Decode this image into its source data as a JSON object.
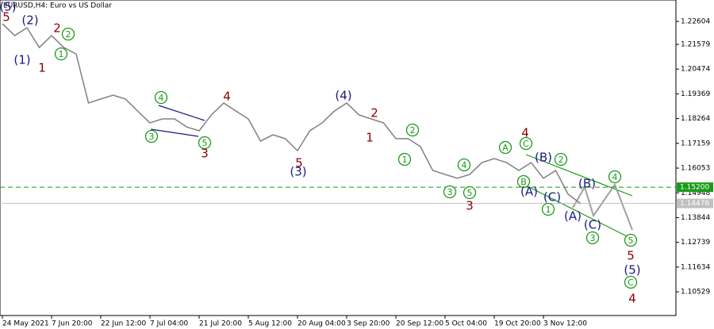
{
  "chart_data": {
    "type": "line",
    "title": "EURUSD,H4:  Euro vs US Dollar",
    "categories": [
      "24 May 2021",
      null,
      null,
      null,
      "7 Jun 20:00",
      null,
      null,
      null,
      "22 Jun 12:00",
      null,
      null,
      null,
      "7 Jul 04:00",
      null,
      null,
      null,
      "21 Jul 20:00",
      null,
      null,
      null,
      "5 Aug 12:00",
      null,
      null,
      null,
      "20 Aug 04:00",
      null,
      null,
      null,
      "3 Sep 20:00",
      null,
      null,
      null,
      "20 Sep 12:00",
      null,
      null,
      null,
      "5 Oct 04:00",
      null,
      null,
      null,
      "19 Oct 20:00",
      null,
      null,
      null,
      "3 Nov 12:00",
      null,
      null,
      null
    ],
    "series": [
      {
        "name": "EURUSD",
        "color": "#808080",
        "values": [
          1.225,
          1.2197,
          1.2232,
          1.2144,
          1.2197,
          1.2144,
          1.2115,
          1.1896,
          1.1914,
          1.1931,
          1.1914,
          1.186,
          1.1807,
          1.1825,
          1.1825,
          1.1789,
          1.1772,
          1.1843,
          1.1896,
          1.186,
          1.1825,
          1.1726,
          1.1754,
          1.1737,
          1.1683,
          1.1772,
          1.1807,
          1.186,
          1.1896,
          1.1843,
          1.1825,
          1.1807,
          1.1737,
          1.1737,
          1.1701,
          1.1595,
          1.1577,
          1.156,
          1.1577,
          1.163,
          1.1648,
          1.163,
          1.1595,
          1.163,
          1.156,
          1.1595,
          1.1489,
          1.14476
        ]
      }
    ],
    "ylim": [
      1.0947,
      1.2356
    ],
    "yticks": [
      1.22604,
      1.21579,
      1.20474,
      1.19369,
      1.18264,
      1.17159,
      1.16053,
      1.14948,
      1.13844,
      1.12739,
      1.11634,
      1.10529
    ],
    "price_levels": [
      {
        "value": 1.152,
        "label": "1.15200",
        "color": "#1a9a1a",
        "dashed": true
      },
      {
        "value": 1.14476,
        "label": "1.14476",
        "color": "#c0c0c0",
        "dashed": false
      }
    ],
    "annotations": [
      {
        "text": "(5)",
        "color": "#1a1a80",
        "circled": false
      },
      {
        "text": "5",
        "color": "#8b0000",
        "circled": false
      },
      {
        "text": "(1)",
        "color": "#1a1a80",
        "circled": false
      },
      {
        "text": "(2)",
        "color": "#1a1a80",
        "circled": false
      },
      {
        "text": "1",
        "color": "#8b0000",
        "circled": false
      },
      {
        "text": "2",
        "color": "#8b0000",
        "circled": false
      },
      {
        "text": "2",
        "color": "#1a9a1a",
        "circled": true
      },
      {
        "text": "1",
        "color": "#1a9a1a",
        "circled": true
      },
      {
        "text": "4",
        "color": "#1a9a1a",
        "circled": true
      },
      {
        "text": "3",
        "color": "#1a9a1a",
        "circled": true
      },
      {
        "text": "5",
        "color": "#1a9a1a",
        "circled": true
      },
      {
        "text": "3",
        "color": "#8b0000",
        "circled": false
      },
      {
        "text": "4",
        "color": "#8b0000",
        "circled": false
      },
      {
        "text": "5",
        "color": "#8b0000",
        "circled": false
      },
      {
        "text": "(3)",
        "color": "#1a1a80",
        "circled": false
      },
      {
        "text": "(4)",
        "color": "#1a1a80",
        "circled": false
      },
      {
        "text": "2",
        "color": "#8b0000",
        "circled": false
      },
      {
        "text": "1",
        "color": "#8b0000",
        "circled": false
      },
      {
        "text": "2",
        "color": "#1a9a1a",
        "circled": true
      },
      {
        "text": "1",
        "color": "#1a9a1a",
        "circled": true
      },
      {
        "text": "4",
        "color": "#1a9a1a",
        "circled": true
      },
      {
        "text": "3",
        "color": "#1a9a1a",
        "circled": true
      },
      {
        "text": "5",
        "color": "#1a9a1a",
        "circled": true
      },
      {
        "text": "3",
        "color": "#8b0000",
        "circled": false
      },
      {
        "text": "A",
        "color": "#1a9a1a",
        "circled": true
      },
      {
        "text": "C",
        "color": "#1a9a1a",
        "circled": true
      },
      {
        "text": "4",
        "color": "#8b0000",
        "circled": false
      },
      {
        "text": "(B)",
        "color": "#1a1a80",
        "circled": false
      },
      {
        "text": "2",
        "color": "#1a9a1a",
        "circled": true
      },
      {
        "text": "B",
        "color": "#1a9a1a",
        "circled": true
      },
      {
        "text": "(A)",
        "color": "#1a1a80",
        "circled": false
      },
      {
        "text": "(C)",
        "color": "#1a1a80",
        "circled": false
      },
      {
        "text": "1",
        "color": "#1a9a1a",
        "circled": true
      },
      {
        "text": "(A)",
        "color": "#1a1a80",
        "circled": false
      },
      {
        "text": "(B)",
        "color": "#1a1a80",
        "circled": false
      },
      {
        "text": "4",
        "color": "#1a9a1a",
        "circled": true
      },
      {
        "text": "(C)",
        "color": "#1a1a80",
        "circled": false
      },
      {
        "text": "3",
        "color": "#1a9a1a",
        "circled": true
      },
      {
        "text": "5",
        "color": "#1a9a1a",
        "circled": true
      },
      {
        "text": "5",
        "color": "#8b0000",
        "circled": false
      },
      {
        "text": "(5)",
        "color": "#1a1a80",
        "circled": false
      },
      {
        "text": "C",
        "color": "#1a9a1a",
        "circled": true
      },
      {
        "text": "4",
        "color": "#8b0000",
        "circled": false
      }
    ]
  }
}
